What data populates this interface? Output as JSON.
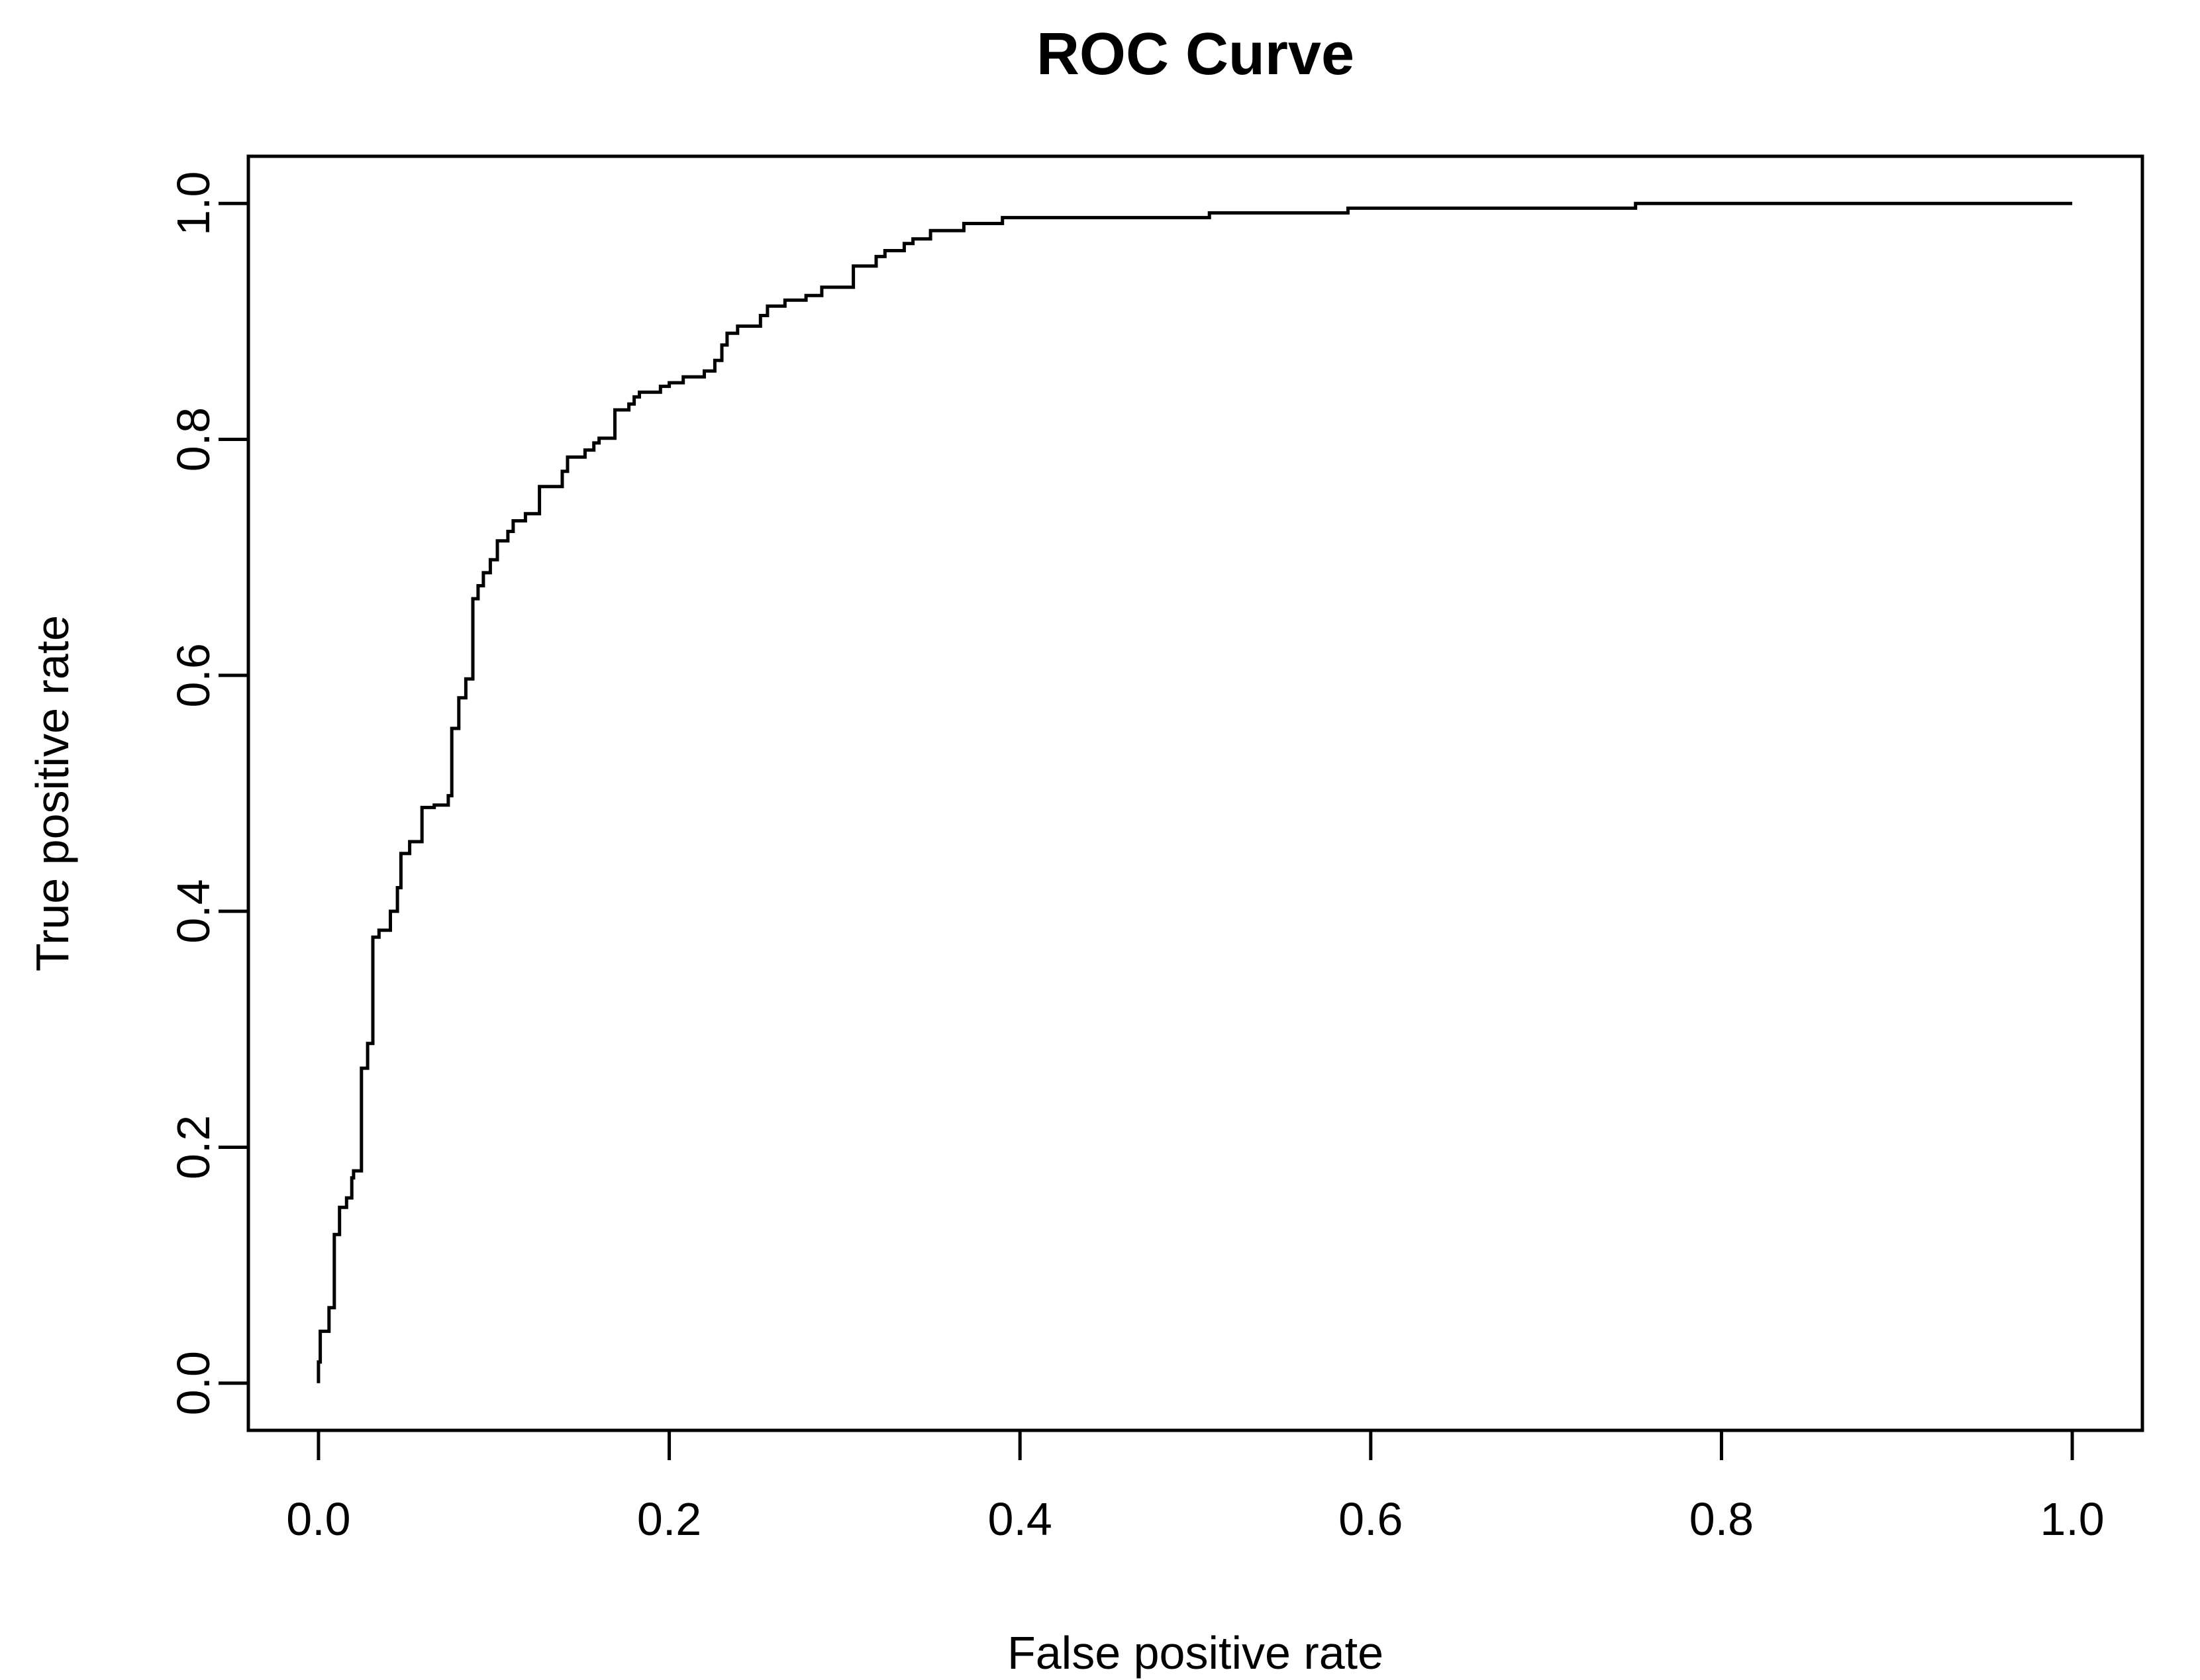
{
  "page": {
    "background": "#ffffff",
    "foreground": "#000000"
  },
  "chart_data": {
    "type": "line",
    "variant": "roc-step-function",
    "title": "ROC Curve",
    "xlabel": "False positive rate",
    "ylabel": "True positive rate",
    "x_ticks": [
      0.0,
      0.2,
      0.4,
      0.6,
      0.8,
      1.0
    ],
    "x_tick_labels": [
      "0.0",
      "0.2",
      "0.4",
      "0.6",
      "0.8",
      "1.0"
    ],
    "y_ticks": [
      0.0,
      0.2,
      0.4,
      0.6,
      0.8,
      1.0
    ],
    "y_tick_labels": [
      "0.0",
      "0.2",
      "0.4",
      "0.6",
      "0.8",
      "1.0"
    ],
    "xlim": [
      0,
      1
    ],
    "ylim": [
      0,
      1
    ],
    "axis_padding_fraction": 0.04,
    "grid": false,
    "legend": "none",
    "line_color": "#000000",
    "box_color": "#000000",
    "background": "#ffffff",
    "curve": {
      "start": [
        0.0,
        0.0
      ],
      "end_x": 1.0,
      "steps": [
        [
          0.0,
          0.018
        ],
        [
          0.001,
          0.044
        ],
        [
          0.006,
          0.064
        ],
        [
          0.009,
          0.126
        ],
        [
          0.012,
          0.149
        ],
        [
          0.016,
          0.157
        ],
        [
          0.019,
          0.174
        ],
        [
          0.02,
          0.18
        ],
        [
          0.0245,
          0.267
        ],
        [
          0.028,
          0.288
        ],
        [
          0.031,
          0.378
        ],
        [
          0.0345,
          0.384
        ],
        [
          0.041,
          0.4
        ],
        [
          0.045,
          0.42
        ],
        [
          0.047,
          0.449
        ],
        [
          0.052,
          0.459
        ],
        [
          0.059,
          0.488
        ],
        [
          0.066,
          0.49
        ],
        [
          0.074,
          0.498
        ],
        [
          0.076,
          0.555
        ],
        [
          0.08,
          0.581
        ],
        [
          0.084,
          0.597
        ],
        [
          0.088,
          0.665
        ],
        [
          0.091,
          0.676
        ],
        [
          0.094,
          0.687
        ],
        [
          0.098,
          0.698
        ],
        [
          0.102,
          0.714
        ],
        [
          0.108,
          0.722
        ],
        [
          0.111,
          0.731
        ],
        [
          0.118,
          0.737
        ],
        [
          0.126,
          0.76
        ],
        [
          0.139,
          0.773
        ],
        [
          0.142,
          0.785
        ],
        [
          0.152,
          0.791
        ],
        [
          0.157,
          0.797
        ],
        [
          0.16,
          0.801
        ],
        [
          0.169,
          0.825
        ],
        [
          0.177,
          0.83
        ],
        [
          0.18,
          0.836
        ],
        [
          0.183,
          0.84
        ],
        [
          0.195,
          0.845
        ],
        [
          0.2,
          0.848
        ],
        [
          0.208,
          0.853
        ],
        [
          0.22,
          0.858
        ],
        [
          0.226,
          0.867
        ],
        [
          0.23,
          0.88
        ],
        [
          0.233,
          0.89
        ],
        [
          0.239,
          0.896
        ],
        [
          0.252,
          0.905
        ],
        [
          0.256,
          0.913
        ],
        [
          0.266,
          0.918
        ],
        [
          0.278,
          0.922
        ],
        [
          0.287,
          0.929
        ],
        [
          0.305,
          0.947
        ],
        [
          0.318,
          0.955
        ],
        [
          0.323,
          0.96
        ],
        [
          0.334,
          0.966
        ],
        [
          0.339,
          0.97
        ],
        [
          0.349,
          0.977
        ],
        [
          0.368,
          0.983
        ],
        [
          0.39,
          0.988
        ],
        [
          0.508,
          0.992
        ],
        [
          0.587,
          0.996
        ],
        [
          0.751,
          1.0
        ]
      ]
    }
  }
}
